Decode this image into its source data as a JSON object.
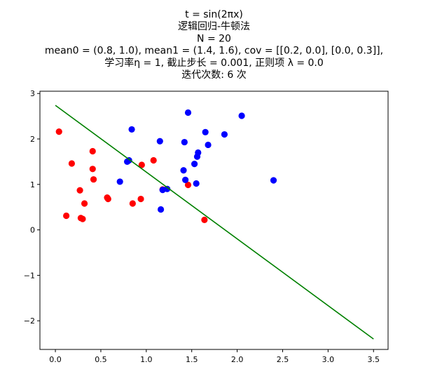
{
  "chart_data": {
    "type": "scatter",
    "title_lines": [
      "t = sin(2πx)",
      "逻辑回归-牛顿法",
      "N = 20",
      "mean0 = (0.8, 1.0), mean1 = (1.4, 1.6), cov = [[0.2, 0.0], [0.0, 0.3]],",
      "学习率η = 1, 截止步长 = 0.001, 正则项 λ = 0.0",
      "迭代次数: 6 次"
    ],
    "xlim": [
      -0.17,
      3.66
    ],
    "ylim": [
      -2.63,
      3.05
    ],
    "x_ticks": [
      0.0,
      0.5,
      1.0,
      1.5,
      2.0,
      2.5,
      3.0,
      3.5
    ],
    "x_tick_labels": [
      "0.0",
      "0.5",
      "1.0",
      "1.5",
      "2.0",
      "2.5",
      "3.0",
      "3.5"
    ],
    "y_ticks": [
      -2,
      -1,
      0,
      1,
      2,
      3
    ],
    "y_tick_labels": [
      "−2",
      "−1",
      "0",
      "1",
      "2",
      "3"
    ],
    "grid": false,
    "series": [
      {
        "color": "#ff0000",
        "points": [
          [
            0.04,
            2.16
          ],
          [
            0.12,
            0.31
          ],
          [
            0.18,
            1.46
          ],
          [
            0.27,
            0.87
          ],
          [
            0.28,
            0.26
          ],
          [
            0.3,
            0.24
          ],
          [
            0.32,
            0.58
          ],
          [
            0.41,
            1.73
          ],
          [
            0.41,
            1.34
          ],
          [
            0.42,
            1.11
          ],
          [
            0.57,
            0.71
          ],
          [
            0.58,
            0.68
          ],
          [
            0.85,
            0.58
          ],
          [
            0.94,
            0.68
          ],
          [
            0.95,
            1.43
          ],
          [
            1.08,
            1.53
          ],
          [
            1.18,
            0.89
          ],
          [
            1.46,
            0.99
          ],
          [
            1.64,
            0.22
          ]
        ]
      },
      {
        "color": "#0000ff",
        "points": [
          [
            0.71,
            1.06
          ],
          [
            0.79,
            1.5
          ],
          [
            0.81,
            1.53
          ],
          [
            0.84,
            2.21
          ],
          [
            1.15,
            1.95
          ],
          [
            1.16,
            0.45
          ],
          [
            1.18,
            0.88
          ],
          [
            1.23,
            0.9
          ],
          [
            1.41,
            1.31
          ],
          [
            1.42,
            1.93
          ],
          [
            1.43,
            1.1
          ],
          [
            1.46,
            2.58
          ],
          [
            1.53,
            1.45
          ],
          [
            1.55,
            1.02
          ],
          [
            1.56,
            1.61
          ],
          [
            1.57,
            1.7
          ],
          [
            1.65,
            2.15
          ],
          [
            1.68,
            1.87
          ],
          [
            1.86,
            2.1
          ],
          [
            2.05,
            2.51
          ],
          [
            2.4,
            1.09
          ]
        ]
      },
      {
        "type": "line",
        "color": "#008000",
        "x": [
          0.0,
          3.5
        ],
        "y": [
          2.74,
          -2.4
        ]
      }
    ]
  }
}
